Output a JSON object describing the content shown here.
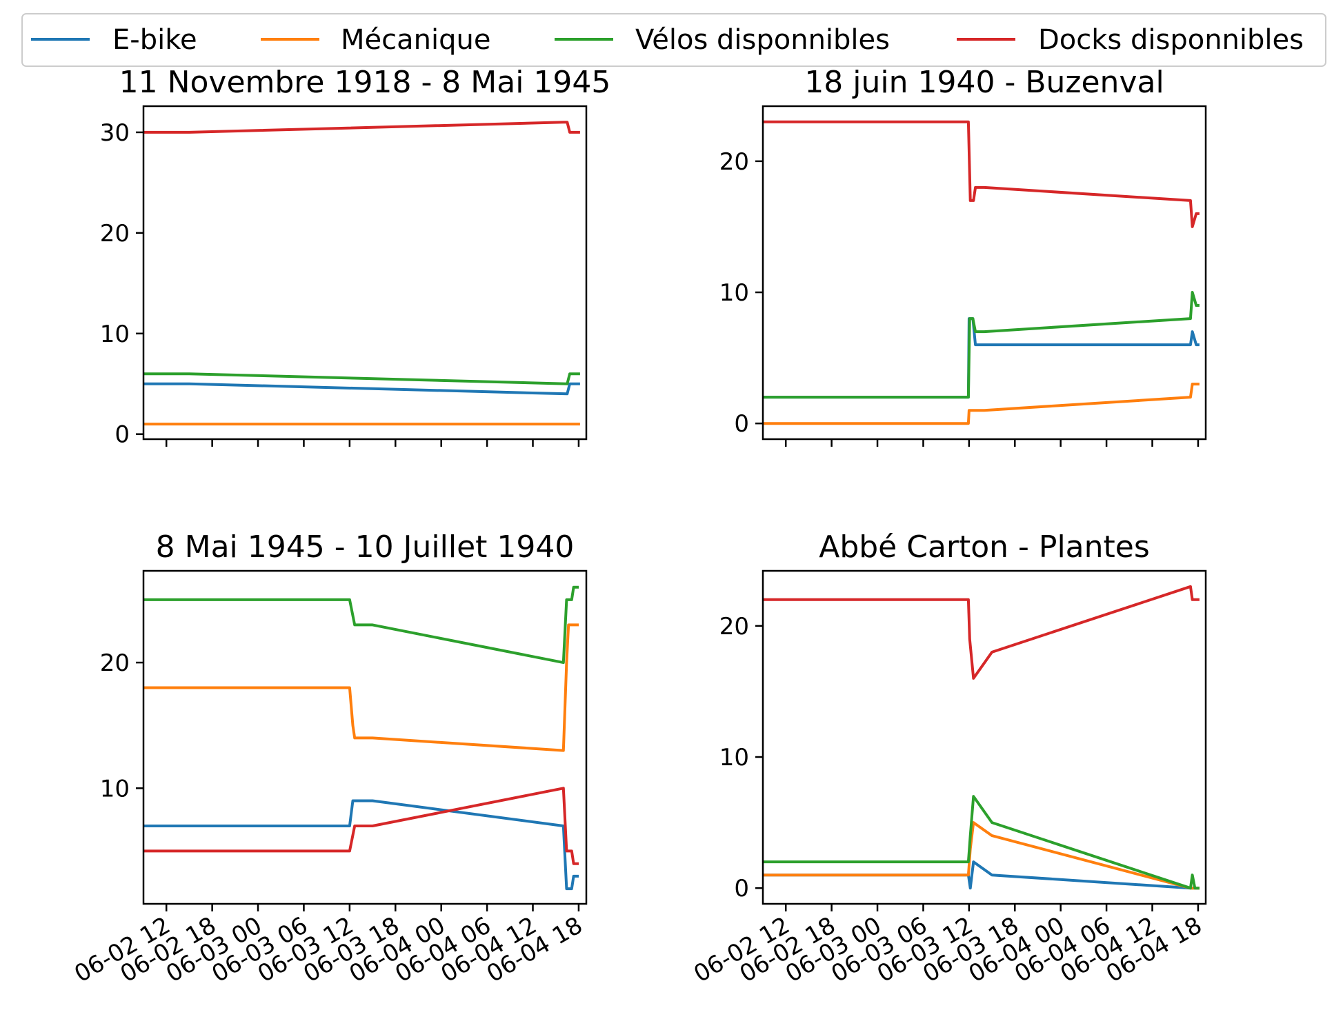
{
  "colors": {
    "e_bike": "#1f77b4",
    "mecanique": "#ff7f0e",
    "velos": "#2ca02c",
    "docks": "#d62728"
  },
  "legend": {
    "placement": "top, outside, horizontal",
    "items": [
      {
        "key": "e_bike",
        "label": "E-bike"
      },
      {
        "key": "mecanique",
        "label": "Mécanique"
      },
      {
        "key": "velos",
        "label": "Vélos disponnibles"
      },
      {
        "key": "docks",
        "label": "Docks disponnibles"
      }
    ]
  },
  "chart_data": [
    {
      "type": "line",
      "title": "11 Novembre 1918 - 8 Mai 1945",
      "ylim": [
        -0.5,
        32.6
      ],
      "yticks": [
        0,
        10,
        20,
        30
      ],
      "xlim": [
        "2024-06-02 09:00",
        "2024-06-04 19:00"
      ],
      "x_tick_labels_shown": false,
      "series": [
        {
          "key": "e_bike",
          "name": "E-bike",
          "points": [
            [
              "2024-06-02 09:00",
              5
            ],
            [
              "2024-06-02 15:00",
              5
            ],
            [
              "2024-06-04 16:30",
              4
            ],
            [
              "2024-06-04 16:50",
              5
            ],
            [
              "2024-06-04 18:00",
              5
            ]
          ]
        },
        {
          "key": "mecanique",
          "name": "Mécanique",
          "points": [
            [
              "2024-06-02 09:00",
              1
            ],
            [
              "2024-06-04 18:00",
              1
            ]
          ]
        },
        {
          "key": "velos",
          "name": "Vélos disponnibles",
          "points": [
            [
              "2024-06-02 09:00",
              6
            ],
            [
              "2024-06-02 15:00",
              6
            ],
            [
              "2024-06-04 16:30",
              5
            ],
            [
              "2024-06-04 16:50",
              6
            ],
            [
              "2024-06-04 18:00",
              6
            ]
          ]
        },
        {
          "key": "docks",
          "name": "Docks disponnibles",
          "points": [
            [
              "2024-06-02 09:00",
              30
            ],
            [
              "2024-06-02 15:00",
              30
            ],
            [
              "2024-06-04 16:00",
              31
            ],
            [
              "2024-06-04 16:30",
              31
            ],
            [
              "2024-06-04 16:50",
              30
            ],
            [
              "2024-06-04 18:00",
              30
            ]
          ]
        }
      ]
    },
    {
      "type": "line",
      "title": "18 juin 1940 - Buzenval",
      "ylim": [
        -1.2,
        24.2
      ],
      "yticks": [
        0,
        10,
        20
      ],
      "xlim": [
        "2024-06-02 09:00",
        "2024-06-04 19:00"
      ],
      "x_tick_labels_shown": false,
      "series": [
        {
          "key": "e_bike",
          "name": "E-bike",
          "points": [
            [
              "2024-06-02 09:00",
              2
            ],
            [
              "2024-06-03 11:55",
              2
            ],
            [
              "2024-06-03 12:00",
              8
            ],
            [
              "2024-06-03 12:30",
              8
            ],
            [
              "2024-06-03 12:50",
              6
            ],
            [
              "2024-06-04 17:00",
              6
            ],
            [
              "2024-06-04 17:15",
              7
            ],
            [
              "2024-06-04 17:45",
              6
            ],
            [
              "2024-06-04 18:00",
              6
            ]
          ]
        },
        {
          "key": "mecanique",
          "name": "Mécanique",
          "points": [
            [
              "2024-06-02 09:00",
              0
            ],
            [
              "2024-06-03 11:55",
              0
            ],
            [
              "2024-06-03 12:00",
              1
            ],
            [
              "2024-06-03 14:00",
              1
            ],
            [
              "2024-06-04 17:00",
              2
            ],
            [
              "2024-06-04 17:15",
              3
            ],
            [
              "2024-06-04 18:00",
              3
            ]
          ]
        },
        {
          "key": "velos",
          "name": "Vélos disponnibles",
          "points": [
            [
              "2024-06-02 09:00",
              2
            ],
            [
              "2024-06-03 11:55",
              2
            ],
            [
              "2024-06-03 12:05",
              8
            ],
            [
              "2024-06-03 12:30",
              8
            ],
            [
              "2024-06-03 12:50",
              7
            ],
            [
              "2024-06-03 14:00",
              7
            ],
            [
              "2024-06-04 17:00",
              8
            ],
            [
              "2024-06-04 17:15",
              10
            ],
            [
              "2024-06-04 17:45",
              9
            ],
            [
              "2024-06-04 18:00",
              9
            ]
          ]
        },
        {
          "key": "docks",
          "name": "Docks disponnibles",
          "points": [
            [
              "2024-06-02 09:00",
              23
            ],
            [
              "2024-06-03 11:55",
              23
            ],
            [
              "2024-06-03 12:10",
              17
            ],
            [
              "2024-06-03 12:35",
              17
            ],
            [
              "2024-06-03 12:50",
              18
            ],
            [
              "2024-06-03 14:00",
              18
            ],
            [
              "2024-06-04 17:00",
              17
            ],
            [
              "2024-06-04 17:15",
              15
            ],
            [
              "2024-06-04 17:45",
              16
            ],
            [
              "2024-06-04 18:00",
              16
            ]
          ]
        }
      ]
    },
    {
      "type": "line",
      "title": "8 Mai 1945 - 10 Juillet 1940",
      "ylim": [
        0.8,
        27.3
      ],
      "yticks": [
        10,
        20
      ],
      "xlim": [
        "2024-06-02 09:00",
        "2024-06-04 19:00"
      ],
      "x_tick_labels": [
        "06-02 12",
        "06-02 18",
        "06-03 00",
        "06-03 06",
        "06-03 12",
        "06-03 18",
        "06-04 00",
        "06-04 06",
        "06-04 12",
        "06-04 18"
      ],
      "series": [
        {
          "key": "e_bike",
          "name": "E-bike",
          "points": [
            [
              "2024-06-02 09:00",
              7
            ],
            [
              "2024-06-03 12:00",
              7
            ],
            [
              "2024-06-03 12:25",
              9
            ],
            [
              "2024-06-03 15:00",
              9
            ],
            [
              "2024-06-04 16:00",
              7
            ],
            [
              "2024-06-04 16:25",
              2
            ],
            [
              "2024-06-04 17:05",
              2
            ],
            [
              "2024-06-04 17:20",
              3
            ],
            [
              "2024-06-04 17:50",
              3
            ]
          ]
        },
        {
          "key": "mecanique",
          "name": "Mécanique",
          "points": [
            [
              "2024-06-02 09:00",
              18
            ],
            [
              "2024-06-03 12:00",
              18
            ],
            [
              "2024-06-03 12:25",
              15
            ],
            [
              "2024-06-03 12:40",
              14
            ],
            [
              "2024-06-03 15:00",
              14
            ],
            [
              "2024-06-04 16:00",
              13
            ],
            [
              "2024-06-04 16:25",
              20
            ],
            [
              "2024-06-04 16:40",
              23
            ],
            [
              "2024-06-04 17:50",
              23
            ]
          ]
        },
        {
          "key": "velos",
          "name": "Vélos disponnibles",
          "points": [
            [
              "2024-06-02 09:00",
              25
            ],
            [
              "2024-06-03 12:00",
              25
            ],
            [
              "2024-06-03 12:40",
              23
            ],
            [
              "2024-06-03 15:00",
              23
            ],
            [
              "2024-06-04 16:00",
              20
            ],
            [
              "2024-06-04 16:25",
              25
            ],
            [
              "2024-06-04 17:05",
              25
            ],
            [
              "2024-06-04 17:20",
              26
            ],
            [
              "2024-06-04 17:50",
              26
            ]
          ]
        },
        {
          "key": "docks",
          "name": "Docks disponnibles",
          "points": [
            [
              "2024-06-02 09:00",
              5
            ],
            [
              "2024-06-03 12:00",
              5
            ],
            [
              "2024-06-03 12:40",
              7
            ],
            [
              "2024-06-03 15:00",
              7
            ],
            [
              "2024-06-04 16:00",
              10
            ],
            [
              "2024-06-04 16:25",
              5
            ],
            [
              "2024-06-04 17:05",
              5
            ],
            [
              "2024-06-04 17:20",
              4
            ],
            [
              "2024-06-04 17:50",
              4
            ]
          ]
        }
      ]
    },
    {
      "type": "line",
      "title": "Abbé Carton - Plantes",
      "ylim": [
        -1.2,
        24.2
      ],
      "yticks": [
        0,
        10,
        20
      ],
      "xlim": [
        "2024-06-02 09:00",
        "2024-06-04 19:00"
      ],
      "x_tick_labels": [
        "06-02 12",
        "06-02 18",
        "06-03 00",
        "06-03 06",
        "06-03 12",
        "06-03 18",
        "06-04 00",
        "06-04 06",
        "06-04 12",
        "06-04 18"
      ],
      "series": [
        {
          "key": "e_bike",
          "name": "E-bike",
          "points": [
            [
              "2024-06-02 09:00",
              1
            ],
            [
              "2024-06-03 11:55",
              1
            ],
            [
              "2024-06-03 12:10",
              0
            ],
            [
              "2024-06-03 12:35",
              2
            ],
            [
              "2024-06-03 15:00",
              1
            ],
            [
              "2024-06-04 17:00",
              0
            ],
            [
              "2024-06-04 18:00",
              0
            ]
          ]
        },
        {
          "key": "mecanique",
          "name": "Mécanique",
          "points": [
            [
              "2024-06-02 09:00",
              1
            ],
            [
              "2024-06-03 11:55",
              1
            ],
            [
              "2024-06-03 12:10",
              3
            ],
            [
              "2024-06-03 12:35",
              5
            ],
            [
              "2024-06-03 15:00",
              4
            ],
            [
              "2024-06-04 17:00",
              0
            ],
            [
              "2024-06-04 18:00",
              0
            ]
          ]
        },
        {
          "key": "velos",
          "name": "Vélos disponnibles",
          "points": [
            [
              "2024-06-02 09:00",
              2
            ],
            [
              "2024-06-03 11:55",
              2
            ],
            [
              "2024-06-03 12:10",
              4
            ],
            [
              "2024-06-03 12:35",
              7
            ],
            [
              "2024-06-03 15:00",
              5
            ],
            [
              "2024-06-04 17:00",
              0
            ],
            [
              "2024-06-04 17:15",
              1
            ],
            [
              "2024-06-04 17:35",
              0
            ],
            [
              "2024-06-04 18:00",
              0
            ]
          ]
        },
        {
          "key": "docks",
          "name": "Docks disponnibles",
          "points": [
            [
              "2024-06-02 09:00",
              22
            ],
            [
              "2024-06-03 11:55",
              22
            ],
            [
              "2024-06-03 12:05",
              19
            ],
            [
              "2024-06-03 12:35",
              16
            ],
            [
              "2024-06-03 15:00",
              18
            ],
            [
              "2024-06-04 17:00",
              23
            ],
            [
              "2024-06-04 17:15",
              22
            ],
            [
              "2024-06-04 18:00",
              22
            ]
          ]
        }
      ]
    }
  ]
}
